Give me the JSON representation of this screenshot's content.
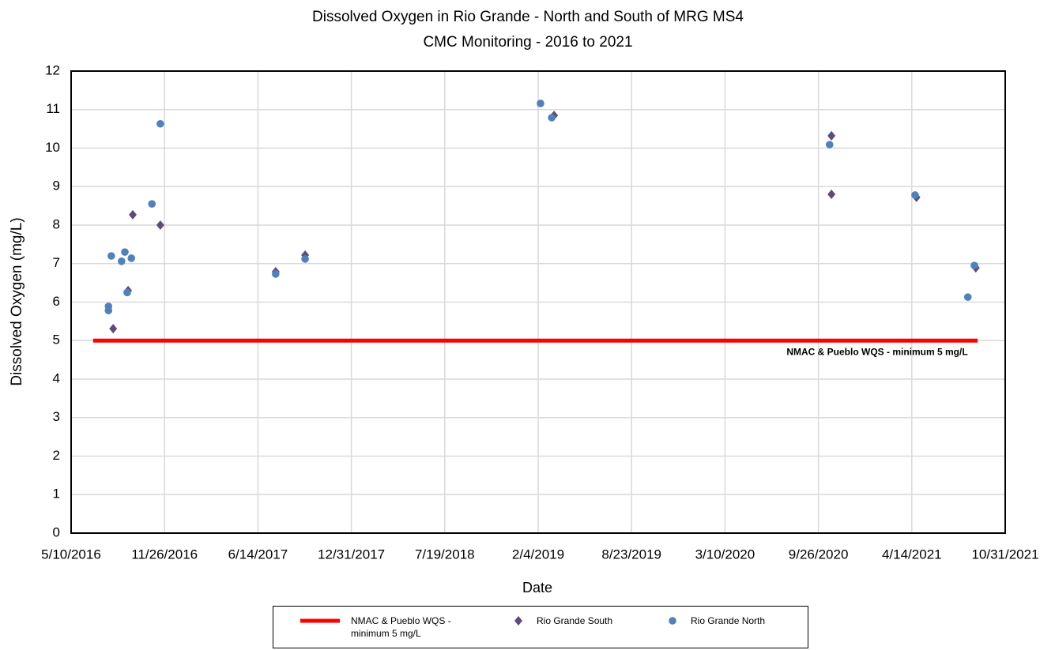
{
  "chart_data": {
    "type": "scatter",
    "title": "Dissolved Oxygen in Rio Grande - North and South of MRG MS4",
    "subtitle": "CMC Monitoring - 2016 to 2021",
    "x_label": "Date",
    "y_label": "Dissolved Oxygen (mg/L)",
    "annotation": "NMAC &  Pueblo WQS - minimum 5 mg/L",
    "xlim": [
      42500,
      44500
    ],
    "xticks": [
      {
        "value": 42500,
        "label": "5/10/2016"
      },
      {
        "value": 42700,
        "label": "11/26/2016"
      },
      {
        "value": 42900,
        "label": "6/14/2017"
      },
      {
        "value": 43100,
        "label": "12/31/2017"
      },
      {
        "value": 43300,
        "label": "7/19/2018"
      },
      {
        "value": 43500,
        "label": "2/4/2019"
      },
      {
        "value": 43700,
        "label": "8/23/2019"
      },
      {
        "value": 43900,
        "label": "3/10/2020"
      },
      {
        "value": 44100,
        "label": "9/26/2020"
      },
      {
        "value": 44300,
        "label": "4/14/2021"
      },
      {
        "value": 44500,
        "label": "10/31/2021"
      }
    ],
    "ylim": [
      0,
      12
    ],
    "yticks": [
      0,
      1,
      2,
      3,
      4,
      5,
      6,
      7,
      8,
      9,
      10,
      11,
      12
    ],
    "grid": true,
    "legend": "bottom",
    "series": [
      {
        "name": "NMAC & Pueblo WQS - minimum 5 mg/L",
        "color": "#ff0000",
        "marker": "line",
        "x": [
          42547,
          44441
        ],
        "values": [
          5,
          5
        ]
      },
      {
        "name": "Rio Grande South",
        "color": "#604a7b",
        "marker": "diamond",
        "x": [
          42590,
          42622,
          42632,
          42691,
          42938,
          43001,
          43534,
          44128,
          44128,
          44310,
          44437
        ],
        "values": [
          5.31,
          6.3,
          8.27,
          8.0,
          6.79,
          7.22,
          10.85,
          10.32,
          8.8,
          8.72,
          6.89
        ]
      },
      {
        "name": "Rio Grande North",
        "color": "#4f81bd",
        "marker": "circle",
        "x": [
          42580,
          42580,
          42586,
          42608,
          42615,
          42620,
          42629,
          42673,
          42691,
          42938,
          43001,
          43505,
          43529,
          44124,
          44307,
          44420,
          44434
        ],
        "values": [
          5.89,
          5.78,
          7.2,
          7.06,
          7.3,
          6.25,
          7.14,
          8.55,
          10.63,
          6.73,
          7.12,
          11.16,
          10.79,
          10.09,
          8.78,
          6.13,
          6.95
        ]
      }
    ]
  }
}
